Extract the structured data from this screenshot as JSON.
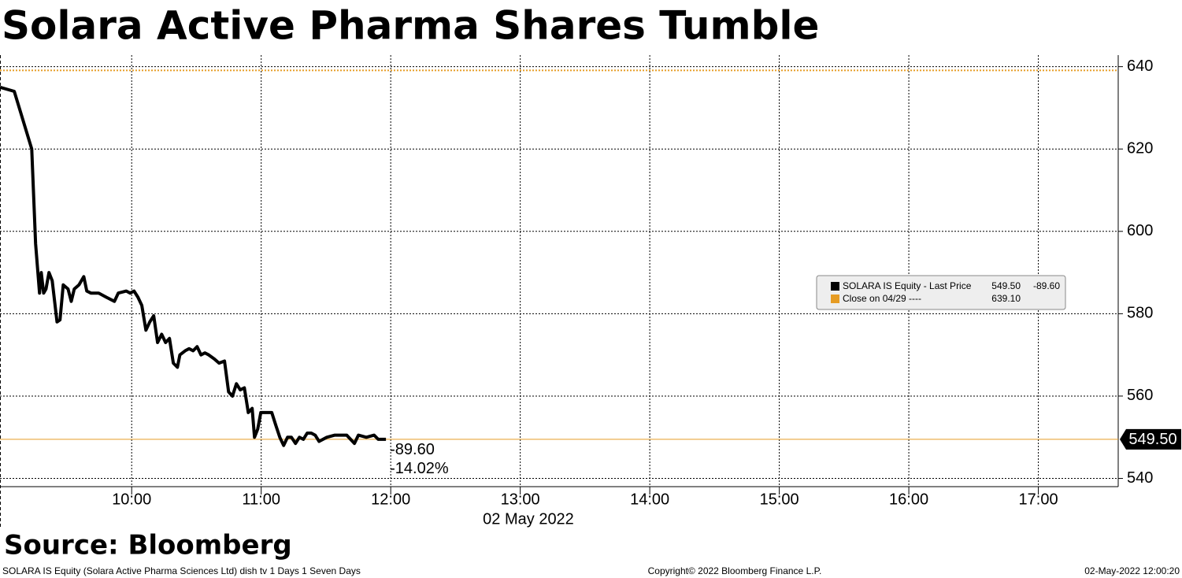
{
  "chart_data": {
    "type": "line",
    "title": "Solara Active Pharma Shares Tumble",
    "source": "Source: Bloomberg",
    "footer_left": "SOLARA IS Equity (Solara Active Pharma Sciences Ltd) dish tv 1 Days 1 Seven Days",
    "footer_center": "Copyright© 2022 Bloomberg Finance L.P.",
    "footer_right": "02-May-2022 12:00:20",
    "xlabel": "02 May 2022",
    "x": [
      539,
      545.6,
      553.7,
      555.5,
      557.3,
      558.1,
      559.2,
      560.3,
      561.7,
      563.2,
      565.4,
      566.8,
      568.3,
      570.5,
      572,
      573.4,
      575.6,
      577.8,
      579.2,
      581.1,
      584.7,
      588.3,
      592,
      593.8,
      597.5,
      599.3,
      601.1,
      602.9,
      604.7,
      606.6,
      608.4,
      610.2,
      612,
      613.9,
      615.7,
      617.5,
      619.3,
      621.2,
      622.3,
      624.8,
      626.6,
      628.5,
      630.3,
      632.1,
      633.9,
      635.7,
      638.3,
      640.5,
      643,
      644.9,
      646.7,
      648.5,
      650.3,
      652.2,
      654,
      655.8,
      656.9,
      658.4,
      659.8,
      663.1,
      664.9,
      666.7,
      668.6,
      670.4,
      672.2,
      674,
      675.9,
      677.7,
      679.5,
      681.3,
      683.2,
      685,
      686.8,
      690.4,
      694.1,
      699.6,
      701.4,
      703.2,
      705,
      708.7,
      712.3,
      714.2,
      717.8
    ],
    "series": [
      {
        "name": "SOLARA IS Equity - Last Price",
        "color": "#000000",
        "values": [
          635,
          634,
          620,
          597,
          585,
          590,
          585,
          586,
          590,
          588,
          578,
          578.5,
          587,
          586,
          583,
          586,
          587,
          589,
          585.5,
          585,
          585,
          584,
          583,
          585,
          585.5,
          585,
          585.5,
          584,
          582,
          576,
          578,
          579.5,
          573,
          575,
          573,
          574,
          568,
          567,
          570,
          571,
          571.5,
          571,
          572,
          570,
          570.5,
          570,
          569,
          568,
          568.5,
          561,
          560,
          563,
          561.5,
          562,
          556,
          557,
          550,
          552,
          556,
          556,
          556,
          553,
          550,
          548,
          550,
          550,
          548.5,
          550,
          549.5,
          551,
          551,
          550.5,
          549,
          550,
          550.5,
          550.5,
          549.5,
          548.5,
          550.5,
          550,
          550.5,
          549.5,
          549.5
        ]
      }
    ],
    "reference": {
      "name": "Close on 04/29 ----",
      "value": 639.1,
      "label": "639.10",
      "color": "#e69c24"
    },
    "last_price": {
      "value": 549.5,
      "label": "549.50"
    },
    "change": {
      "value": -89.6,
      "label": "-89.60"
    },
    "change_pct": {
      "value": -14.02,
      "label": "-14.02%"
    },
    "xlim": [
      539,
      1057
    ],
    "xticks": [
      {
        "value": 600,
        "label": "10:00"
      },
      {
        "value": 660,
        "label": "11:00"
      },
      {
        "value": 720,
        "label": "12:00"
      },
      {
        "value": 780,
        "label": "13:00"
      },
      {
        "value": 840,
        "label": "14:00"
      },
      {
        "value": 900,
        "label": "15:00"
      },
      {
        "value": 960,
        "label": "16:00"
      },
      {
        "value": 1020,
        "label": "17:00"
      }
    ],
    "ylim": [
      538,
      642.8
    ],
    "yticks": [
      540,
      560,
      580,
      600,
      620,
      640
    ],
    "grid": true
  }
}
